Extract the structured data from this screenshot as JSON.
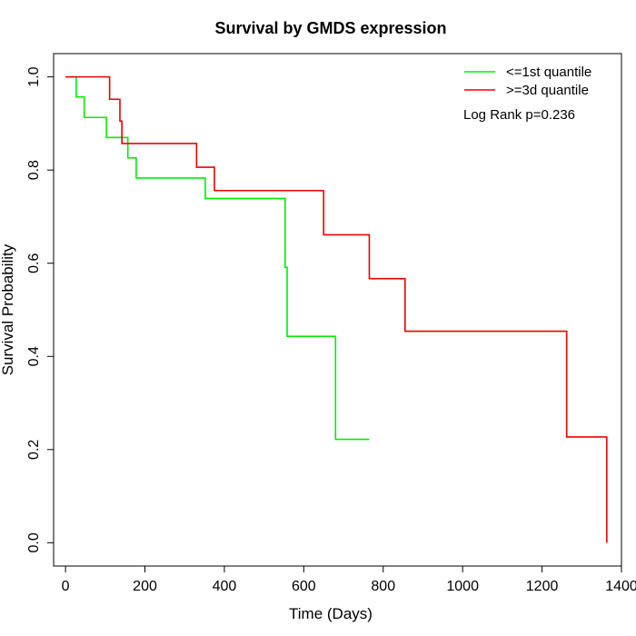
{
  "chart_data": {
    "type": "line",
    "title": "Survival by GMDS expression",
    "xlabel": "Time (Days)",
    "ylabel": "Survival Probability",
    "xlim": [
      -30,
      1400
    ],
    "ylim": [
      -0.05,
      1.05
    ],
    "x_ticks": [
      "0",
      "200",
      "400",
      "600",
      "800",
      "1000",
      "1200",
      "1400"
    ],
    "y_ticks": [
      "0.0",
      "0.2",
      "0.4",
      "0.6",
      "0.8",
      "1.0"
    ],
    "annotation": "Log Rank p=0.236",
    "legend_position": "top-right",
    "series": [
      {
        "name": "<=1st quantile",
        "color": "#00ee00",
        "step": true,
        "points": [
          [
            0,
            1.0
          ],
          [
            27,
            0.957
          ],
          [
            47,
            0.913
          ],
          [
            103,
            0.87
          ],
          [
            157,
            0.826
          ],
          [
            178,
            0.783
          ],
          [
            352,
            0.739
          ],
          [
            553,
            0.591
          ],
          [
            558,
            0.443
          ],
          [
            680,
            0.222
          ],
          [
            765,
            0.222
          ]
        ]
      },
      {
        "name": ">=3d quantile",
        "color": "#ee0000",
        "step": true,
        "points": [
          [
            0,
            1.0
          ],
          [
            111,
            0.952
          ],
          [
            137,
            0.905
          ],
          [
            142,
            0.857
          ],
          [
            330,
            0.806
          ],
          [
            375,
            0.756
          ],
          [
            650,
            0.661
          ],
          [
            765,
            0.567
          ],
          [
            855,
            0.454
          ],
          [
            1262,
            0.227
          ],
          [
            1363,
            0.0
          ]
        ]
      }
    ]
  }
}
